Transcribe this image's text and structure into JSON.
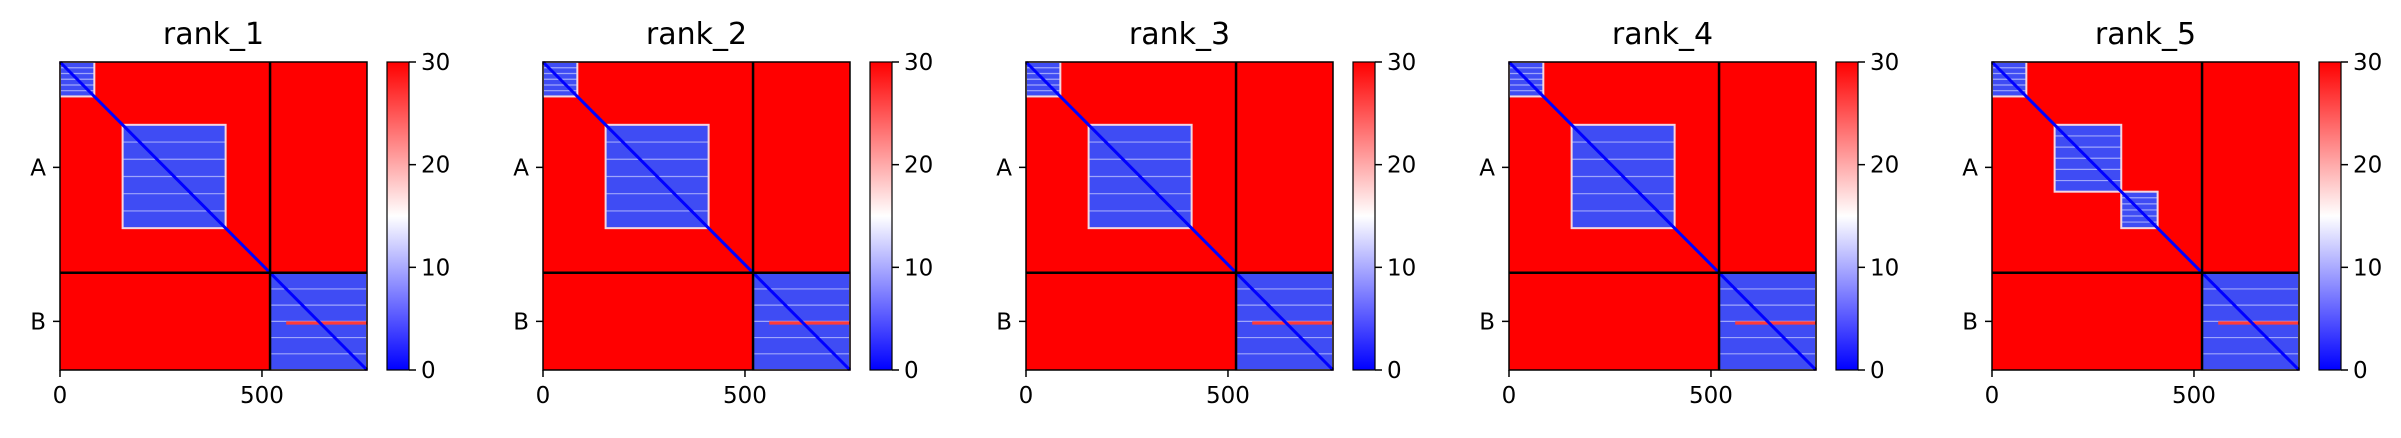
{
  "chart_data": [
    {
      "type": "heatmap",
      "title": "rank_1",
      "xticks": [
        0,
        500
      ],
      "xlim": [
        0,
        760
      ],
      "ylim": [
        0,
        760
      ],
      "row_labels": [
        "A",
        "B"
      ],
      "chain_boundary": 520,
      "colorbar": {
        "min": 0,
        "max": 30,
        "ticks": [
          0,
          10,
          20,
          30
        ],
        "colors": [
          "#0000ff",
          "#ffffff",
          "#ff0000"
        ]
      },
      "low_blocks": [
        [
          0,
          85,
          0,
          85
        ],
        [
          155,
          410,
          155,
          410
        ],
        [
          520,
          760,
          520,
          760
        ]
      ],
      "diagonal_low": true
    },
    {
      "type": "heatmap",
      "title": "rank_2",
      "xticks": [
        0,
        500
      ],
      "xlim": [
        0,
        760
      ],
      "ylim": [
        0,
        760
      ],
      "row_labels": [
        "A",
        "B"
      ],
      "chain_boundary": 520,
      "colorbar": {
        "min": 0,
        "max": 30,
        "ticks": [
          0,
          10,
          20,
          30
        ],
        "colors": [
          "#0000ff",
          "#ffffff",
          "#ff0000"
        ]
      },
      "low_blocks": [
        [
          0,
          85,
          0,
          85
        ],
        [
          155,
          410,
          155,
          410
        ],
        [
          520,
          760,
          520,
          760
        ]
      ],
      "diagonal_low": true
    },
    {
      "type": "heatmap",
      "title": "rank_3",
      "xticks": [
        0,
        500
      ],
      "xlim": [
        0,
        760
      ],
      "ylim": [
        0,
        760
      ],
      "row_labels": [
        "A",
        "B"
      ],
      "chain_boundary": 520,
      "colorbar": {
        "min": 0,
        "max": 30,
        "ticks": [
          0,
          10,
          20,
          30
        ],
        "colors": [
          "#0000ff",
          "#ffffff",
          "#ff0000"
        ]
      },
      "low_blocks": [
        [
          0,
          85,
          0,
          85
        ],
        [
          155,
          410,
          155,
          410
        ],
        [
          520,
          760,
          520,
          760
        ]
      ],
      "diagonal_low": true
    },
    {
      "type": "heatmap",
      "title": "rank_4",
      "xticks": [
        0,
        500
      ],
      "xlim": [
        0,
        760
      ],
      "ylim": [
        0,
        760
      ],
      "row_labels": [
        "A",
        "B"
      ],
      "chain_boundary": 520,
      "colorbar": {
        "min": 0,
        "max": 30,
        "ticks": [
          0,
          10,
          20,
          30
        ],
        "colors": [
          "#0000ff",
          "#ffffff",
          "#ff0000"
        ]
      },
      "low_blocks": [
        [
          0,
          85,
          0,
          85
        ],
        [
          155,
          410,
          155,
          410
        ],
        [
          520,
          760,
          520,
          760
        ]
      ],
      "diagonal_low": true
    },
    {
      "type": "heatmap",
      "title": "rank_5",
      "xticks": [
        0,
        500
      ],
      "xlim": [
        0,
        760
      ],
      "ylim": [
        0,
        760
      ],
      "row_labels": [
        "A",
        "B"
      ],
      "chain_boundary": 520,
      "colorbar": {
        "min": 0,
        "max": 30,
        "ticks": [
          0,
          10,
          20,
          30
        ],
        "colors": [
          "#0000ff",
          "#ffffff",
          "#ff0000"
        ]
      },
      "low_blocks": [
        [
          0,
          85,
          0,
          85
        ],
        [
          155,
          320,
          155,
          320
        ],
        [
          320,
          410,
          320,
          410
        ],
        [
          520,
          760,
          520,
          760
        ]
      ],
      "diagonal_low": true
    }
  ]
}
